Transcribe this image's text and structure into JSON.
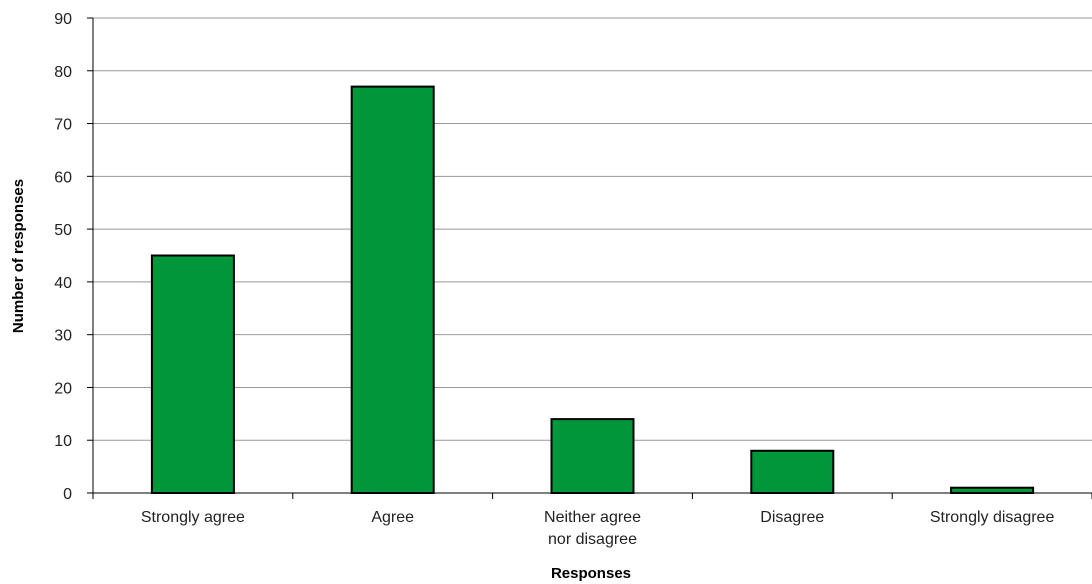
{
  "chart_data": {
    "type": "bar",
    "categories": [
      "Strongly agree",
      "Agree",
      "Neither agree nor disagree",
      "Disagree",
      "Strongly disagree"
    ],
    "category_label_lines": [
      [
        "Strongly agree"
      ],
      [
        "Agree"
      ],
      [
        "Neither agree",
        "nor disagree"
      ],
      [
        "Disagree"
      ],
      [
        "Strongly disagree"
      ]
    ],
    "values": [
      45,
      77,
      14,
      8,
      1
    ],
    "xlabel": "Responses",
    "ylabel": "Number of responses",
    "ylim": [
      0,
      90
    ],
    "yticks": [
      0,
      10,
      20,
      30,
      40,
      50,
      60,
      70,
      80,
      90
    ],
    "grid": true,
    "bar_color": "#00963a",
    "bar_outline_color": "#000000",
    "gridline_color": "#999999"
  }
}
